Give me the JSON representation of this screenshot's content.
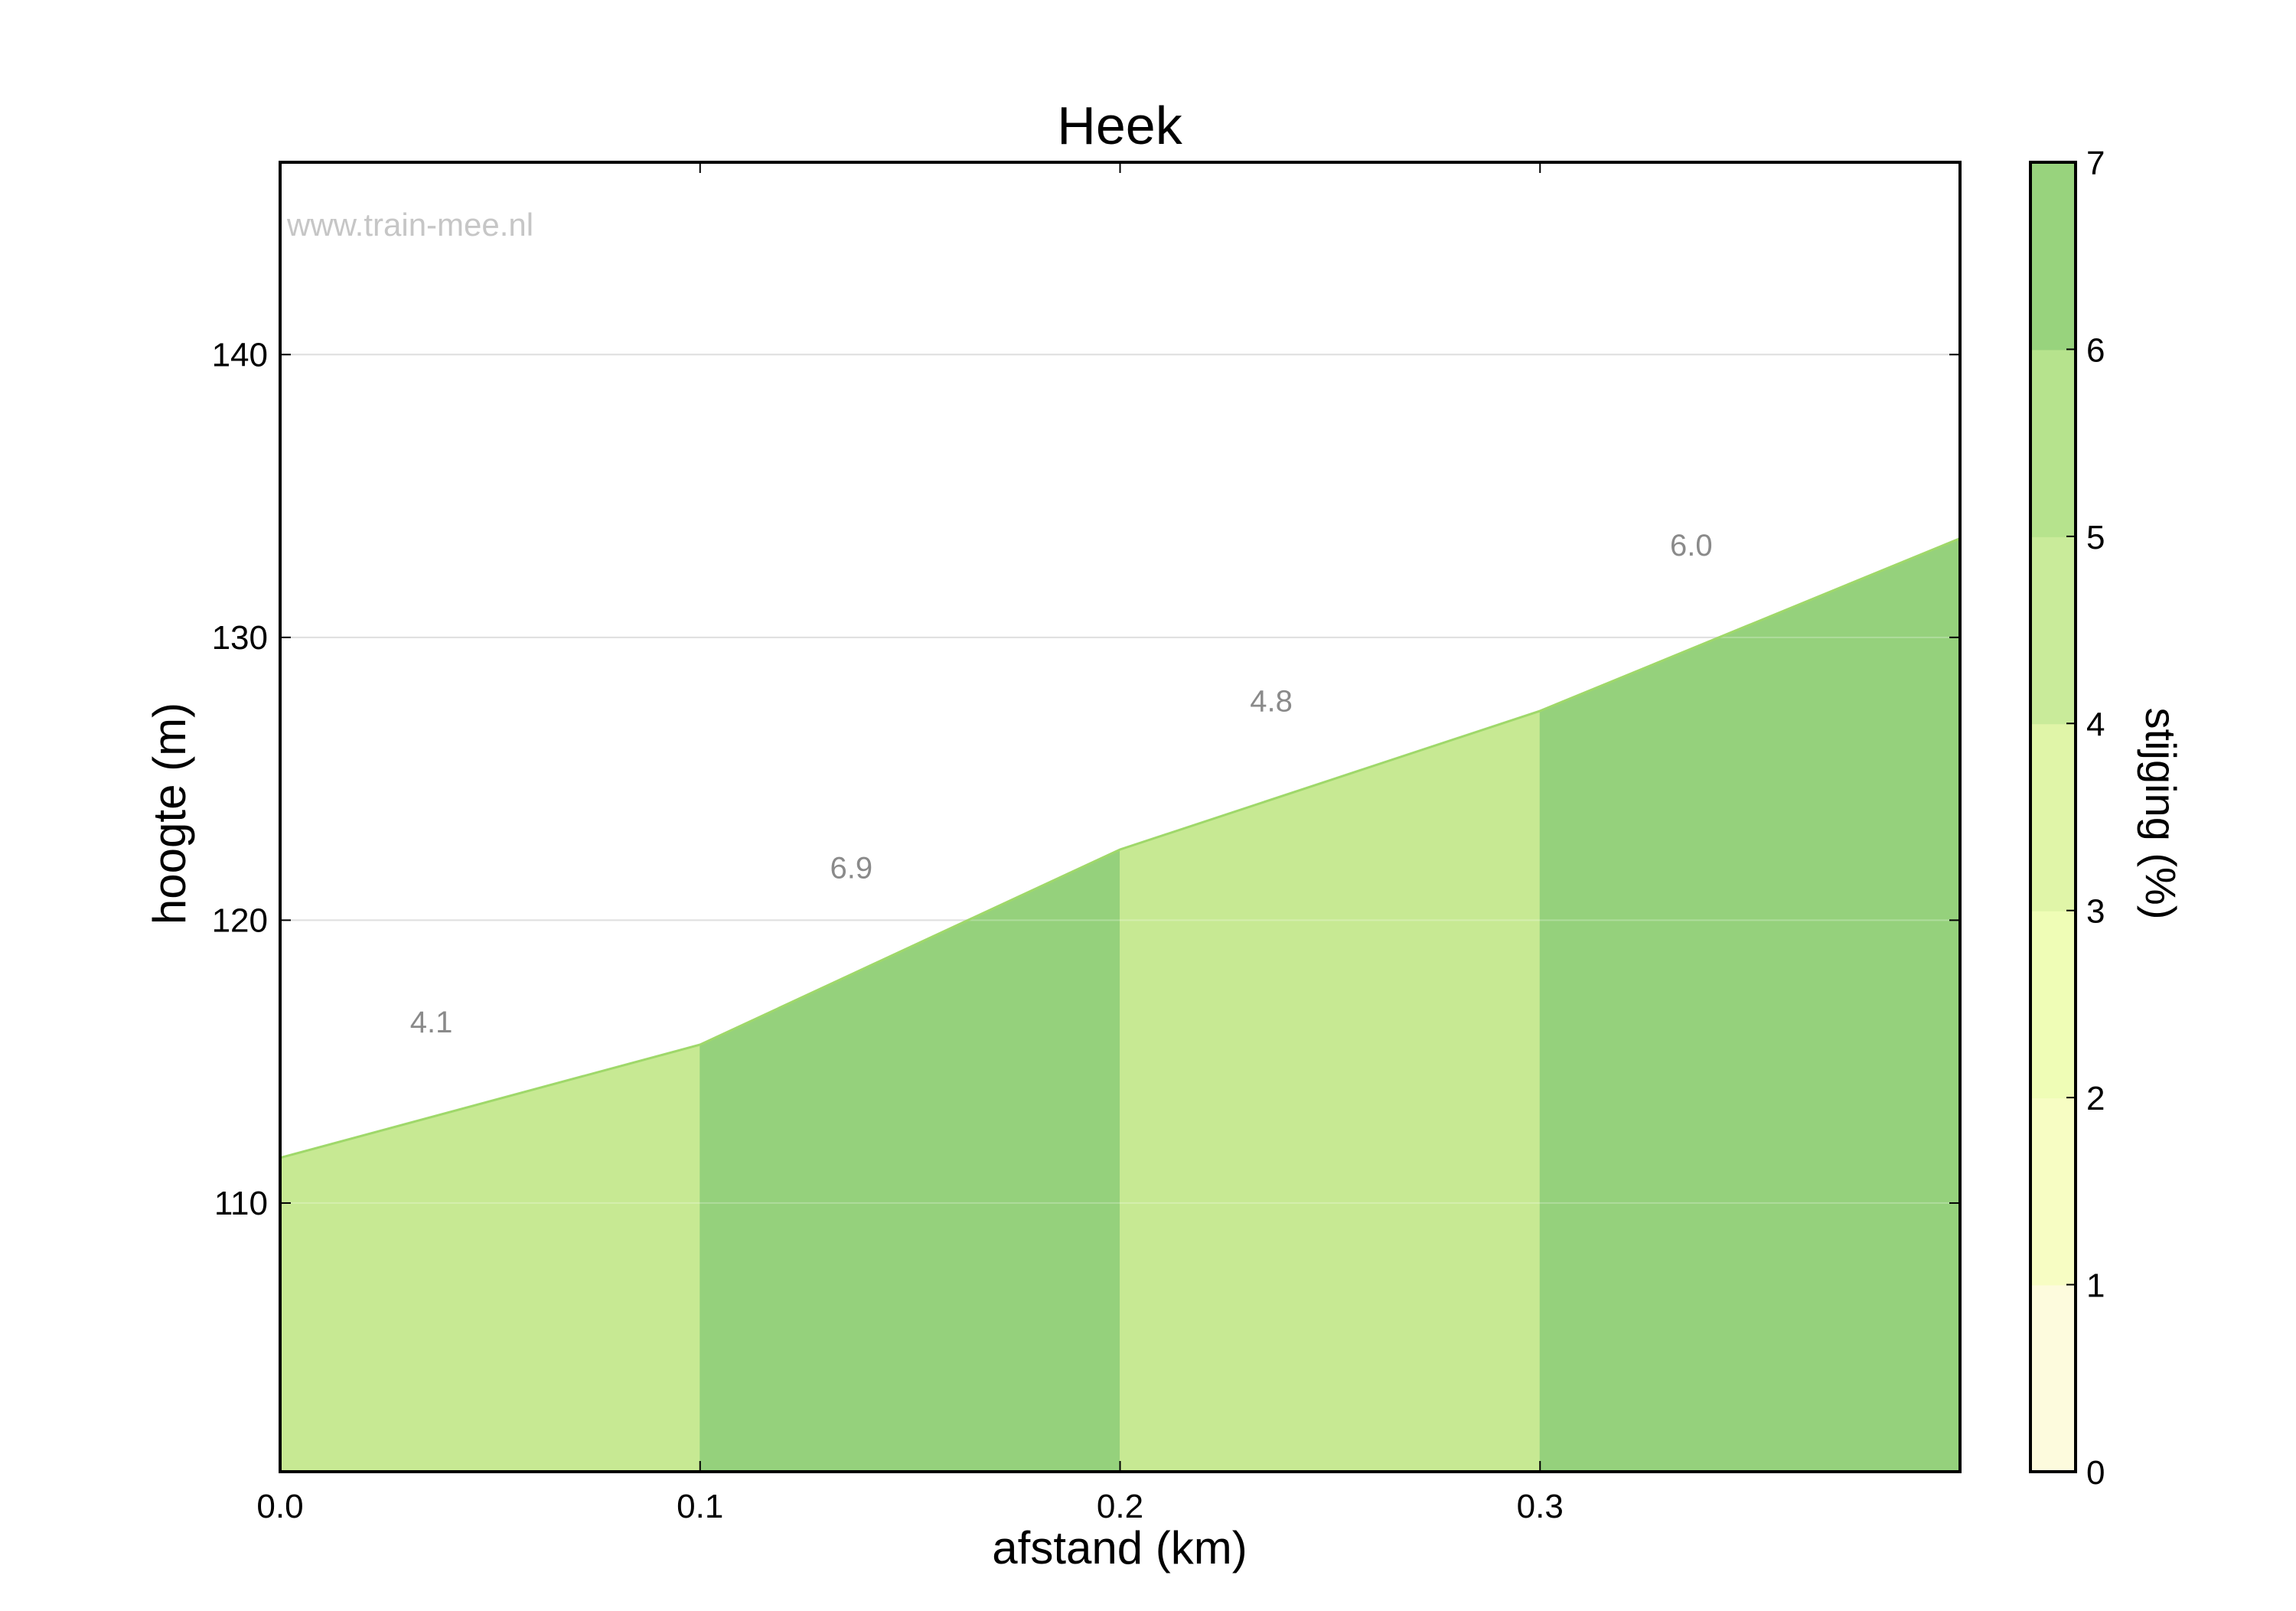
{
  "chart_data": {
    "type": "area",
    "title": "Heek",
    "xlabel": "afstand (km)",
    "ylabel": "hoogte (m)",
    "watermark": "www.train-mee.nl",
    "xlim": [
      0.0,
      0.4
    ],
    "ylim": [
      100.5,
      146.8
    ],
    "xticks": [
      0.0,
      0.1,
      0.2,
      0.3
    ],
    "xtick_labels": [
      "0.0",
      "0.1",
      "0.2",
      "0.3"
    ],
    "yticks": [
      110,
      120,
      130,
      140
    ],
    "ytick_labels": [
      "110",
      "120",
      "130",
      "140"
    ],
    "grid": "horizontal",
    "profile": {
      "x": [
        0.0,
        0.1,
        0.2,
        0.3,
        0.4
      ],
      "y": [
        111.6,
        115.6,
        122.5,
        127.4,
        133.5
      ]
    },
    "segments": [
      {
        "label": "4.1",
        "gradient": 4.1,
        "color": "#c7e993"
      },
      {
        "label": "6.9",
        "gradient": 6.9,
        "color": "#95d17c"
      },
      {
        "label": "4.8",
        "gradient": 4.8,
        "color": "#c7e993"
      },
      {
        "label": "6.0",
        "gradient": 6.0,
        "color": "#95d17c"
      }
    ],
    "line_color": "#9fd86a",
    "colorbar": {
      "label": "stijging (%)",
      "min": 0,
      "max": 7,
      "ticks": [
        "0",
        "1",
        "2",
        "3",
        "4",
        "5",
        "6",
        "7"
      ],
      "colors": [
        "#fdfbdd",
        "#f7fdc3",
        "#effdb6",
        "#e0f5a8",
        "#c9eb9a",
        "#b6e38d",
        "#98d37d"
      ]
    }
  }
}
